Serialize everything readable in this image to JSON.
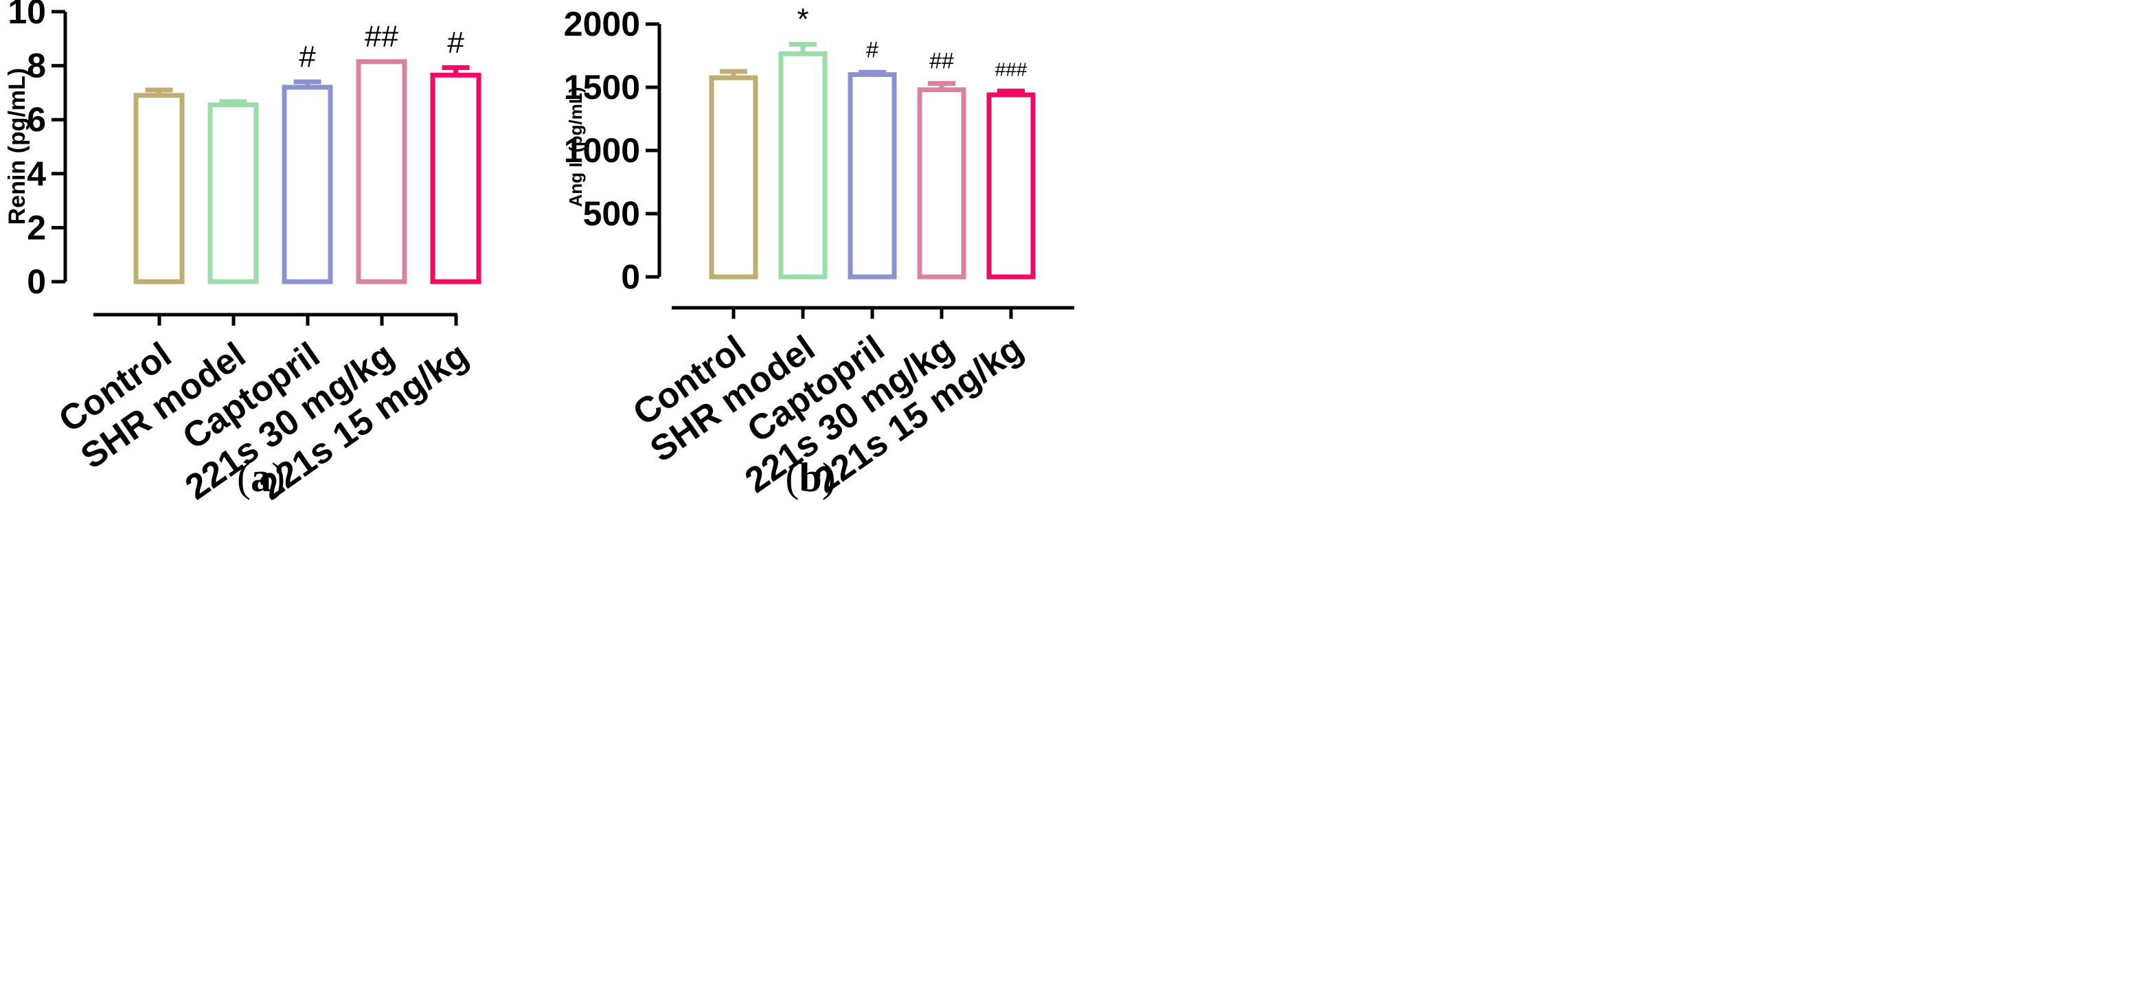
{
  "chart_data": [
    {
      "type": "bar",
      "panel": "a",
      "panel_label": {
        "open": "(",
        "letter": "a",
        "close": ")"
      },
      "ylabel": "Renin (pg/mL)",
      "ylim": [
        0,
        10
      ],
      "yticks": [
        0,
        2,
        4,
        6,
        8,
        10
      ],
      "categories": [
        "Control",
        "SHR model",
        "Captopril",
        "221s 30 mg/kg",
        "221s 15 mg/kg"
      ],
      "values": [
        6.9,
        6.55,
        7.2,
        8.15,
        7.65
      ],
      "errors": [
        0.2,
        0.12,
        0.2,
        0.0,
        0.28
      ],
      "annotations": [
        "",
        "",
        "#",
        "##",
        "#"
      ],
      "colors": [
        "#bfae72",
        "#99deaa",
        "#8c92d0",
        "#d8849f",
        "#f00a63"
      ]
    },
    {
      "type": "bar",
      "panel": "b",
      "panel_label": {
        "open": "(",
        "letter": "b",
        "close": ")"
      },
      "ylabel": "Ang II (pg/mL)",
      "ylim": [
        0,
        2000
      ],
      "yticks": [
        0,
        500,
        1000,
        1500,
        2000
      ],
      "categories": [
        "Control",
        "SHR model",
        "Captopril",
        "221s 30 mg/kg",
        "221s 15 mg/kg"
      ],
      "values": [
        1575,
        1765,
        1600,
        1480,
        1440
      ],
      "errors": [
        50,
        75,
        18,
        50,
        30
      ],
      "annotations": [
        "",
        "*",
        "#",
        "##",
        "###"
      ],
      "colors": [
        "#bfae72",
        "#99deaa",
        "#8c92d0",
        "#d8849f",
        "#f00a63"
      ]
    }
  ]
}
